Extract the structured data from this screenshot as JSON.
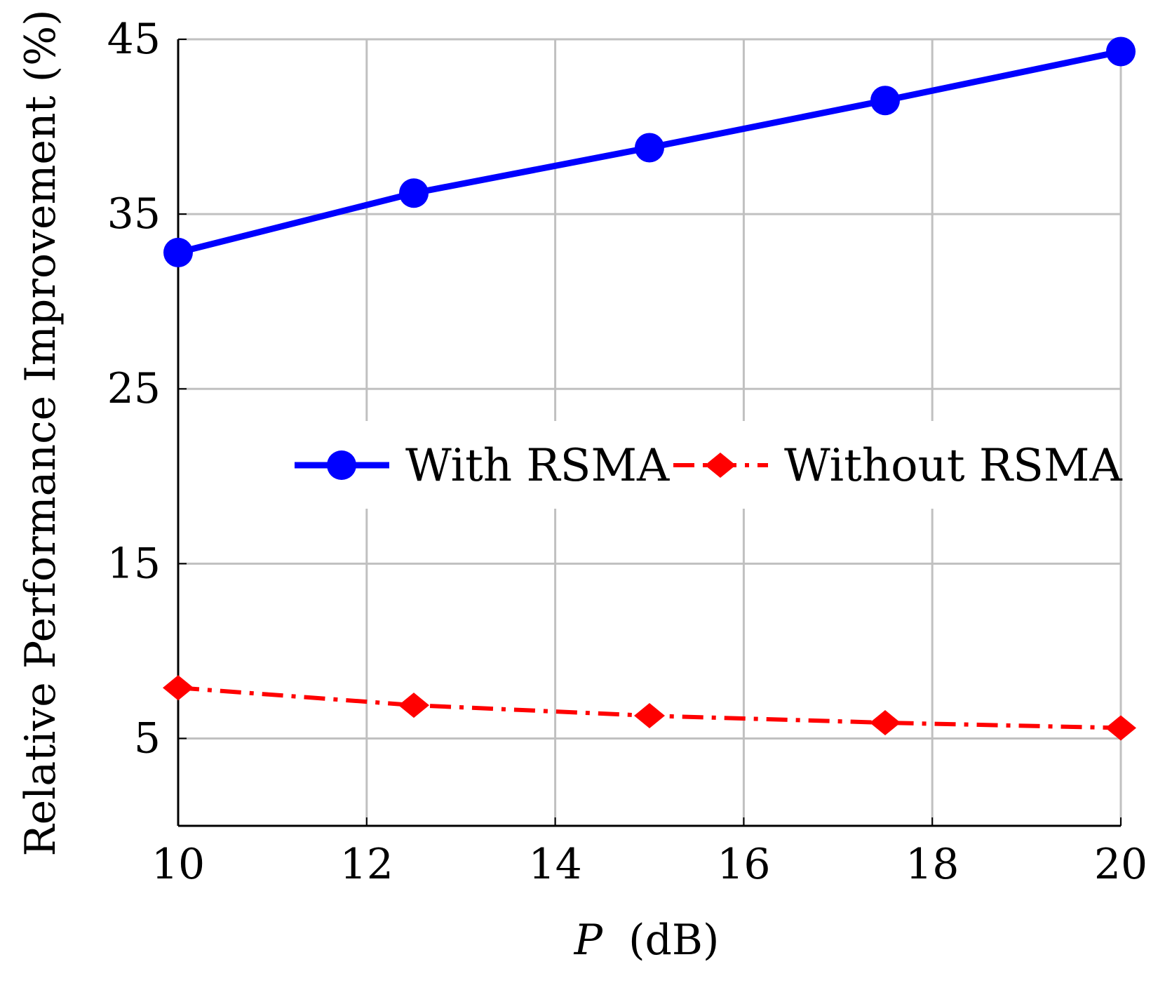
{
  "chart_data": {
    "type": "line",
    "title": "",
    "xlabel_var": "P",
    "xlabel_unit": "(dB)",
    "ylabel": "Relative Performance Improvement (%)",
    "xlim": [
      10,
      20
    ],
    "ylim": [
      0,
      45
    ],
    "xticks": [
      10,
      12,
      14,
      16,
      18,
      20
    ],
    "yticks": [
      5,
      15,
      25,
      35,
      45
    ],
    "grid": true,
    "legend_position": "center-right",
    "series": [
      {
        "name": "With RSMA",
        "color": "#0000ff",
        "marker": "circle",
        "linestyle": "solid",
        "x": [
          10,
          12.5,
          15,
          17.5,
          20
        ],
        "y": [
          32.8,
          36.2,
          38.8,
          41.5,
          44.3
        ]
      },
      {
        "name": "Without RSMA",
        "color": "#ff0000",
        "marker": "diamond",
        "linestyle": "dashdot",
        "x": [
          10,
          12.5,
          15,
          17.5,
          20
        ],
        "y": [
          7.9,
          6.9,
          6.3,
          5.9,
          5.6
        ]
      }
    ]
  }
}
